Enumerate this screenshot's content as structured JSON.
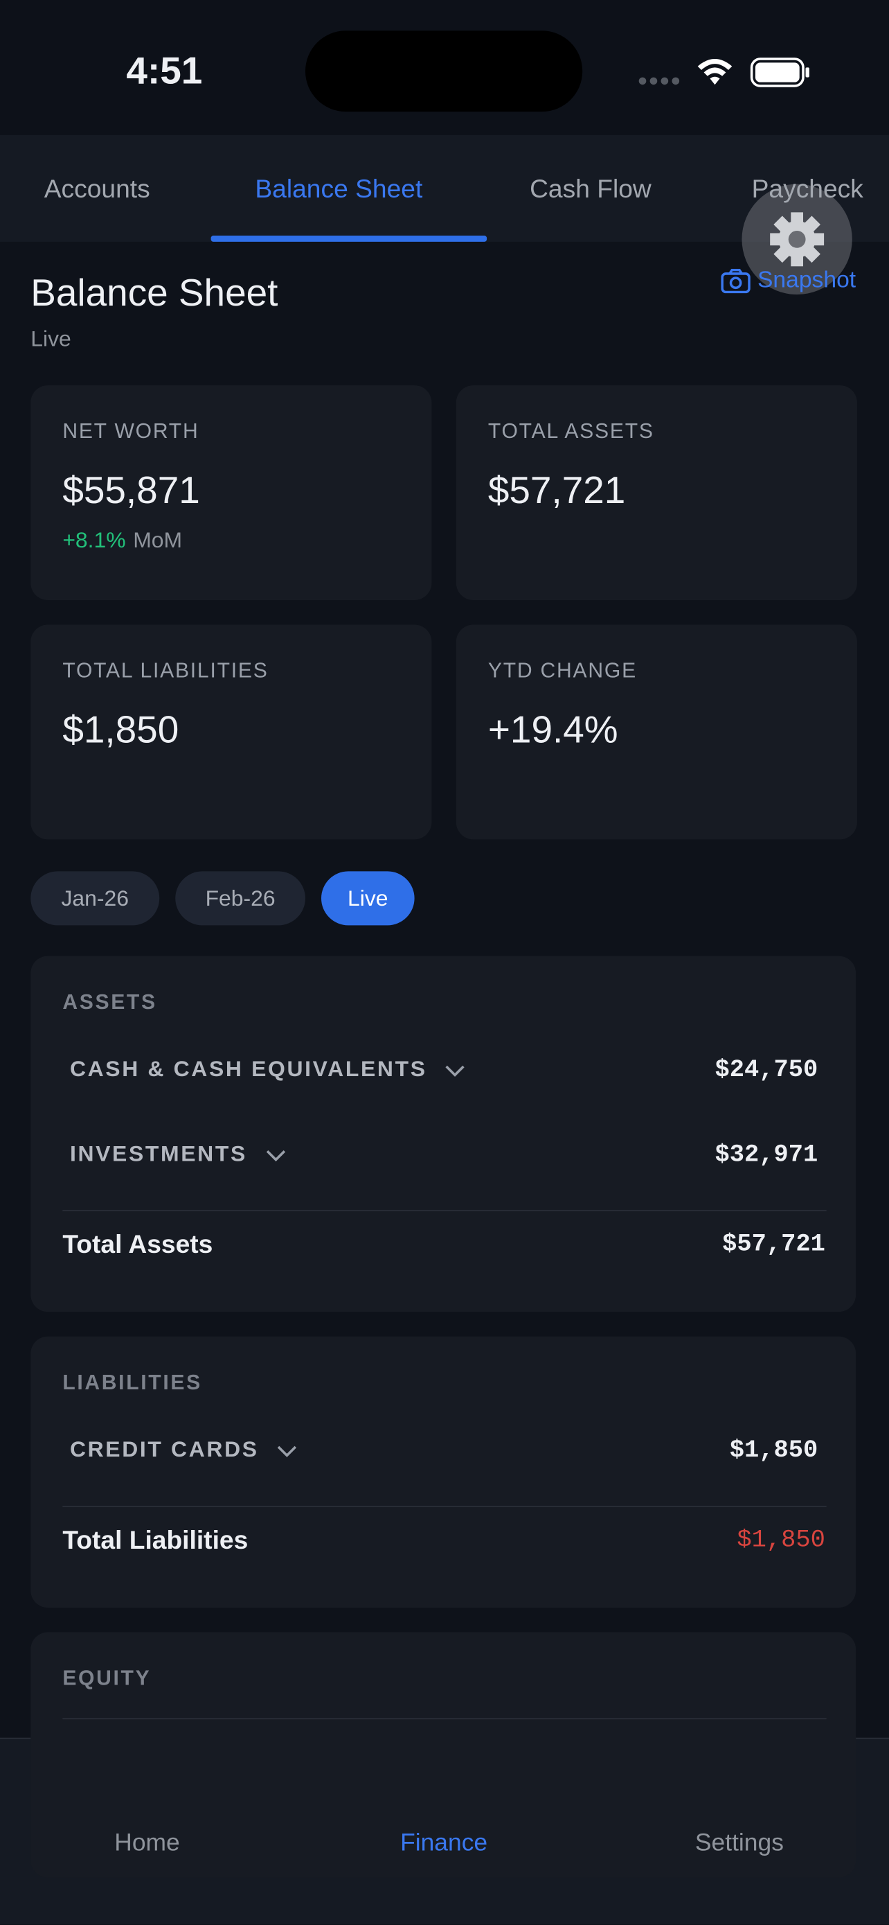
{
  "status_bar": {
    "time": "4:51"
  },
  "tabs": {
    "items": [
      "Accounts",
      "Balance Sheet",
      "Cash Flow",
      "Paycheck"
    ],
    "active": 1
  },
  "header": {
    "title": "Balance Sheet",
    "subtitle": "Live",
    "snapshot": "Snapshot"
  },
  "cards": [
    {
      "label": "NET WORTH",
      "value": "$55,871",
      "change": "+8.1%",
      "change_note": "MoM"
    },
    {
      "label": "TOTAL ASSETS",
      "value": "$57,721"
    },
    {
      "label": "TOTAL LIABILITIES",
      "value": "$1,850"
    },
    {
      "label": "YTD CHANGE",
      "value": "+19.4%"
    }
  ],
  "periods": {
    "items": [
      "Jan-26",
      "Feb-26",
      "Live"
    ],
    "active": 2
  },
  "sections": [
    {
      "title": "ASSETS",
      "rows": [
        {
          "label": "CASH & CASH EQUIVALENTS",
          "value": "$24,750"
        },
        {
          "label": "INVESTMENTS",
          "value": "$32,971"
        }
      ],
      "total": {
        "label": "Total Assets",
        "value": "$57,721"
      }
    },
    {
      "title": "LIABILITIES",
      "rows": [
        {
          "label": "CREDIT CARDS",
          "value": "$1,850"
        }
      ],
      "total": {
        "label": "Total Liabilities",
        "value": "$1,850"
      }
    },
    {
      "title": "EQUITY"
    }
  ],
  "nav": {
    "items": [
      "Home",
      "Finance",
      "Settings"
    ],
    "active": 1
  }
}
